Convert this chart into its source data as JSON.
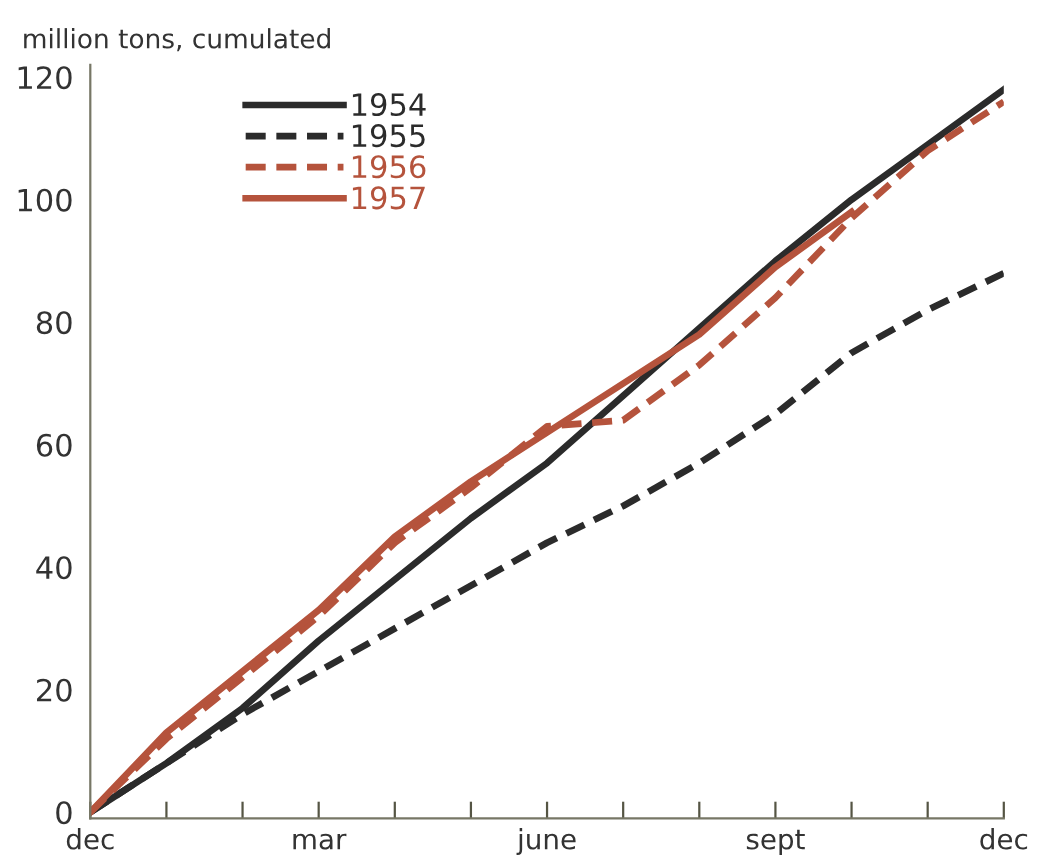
{
  "chart_data": {
    "type": "line",
    "ylabel": "million tons, cumulated",
    "categories": [
      "dec",
      null,
      null,
      "mar",
      null,
      null,
      "june",
      null,
      null,
      "sept",
      null,
      null,
      "dec"
    ],
    "ylim": [
      -1,
      122
    ],
    "yticks": [
      0,
      20,
      40,
      60,
      80,
      100,
      120
    ],
    "grid": false,
    "legend": "top left",
    "marker": "none",
    "series": [
      {
        "name": "1954",
        "color": "#2b2b2b",
        "line_style": "solid",
        "values": [
          0,
          8,
          17,
          28,
          38,
          48,
          57,
          68,
          79,
          90,
          100,
          109,
          118
        ]
      },
      {
        "name": "1955",
        "color": "#2b2b2b",
        "line_style": "dashed",
        "values": [
          0,
          8,
          16,
          23,
          30,
          37,
          44,
          50,
          57,
          65,
          75,
          82,
          88
        ]
      },
      {
        "name": "1956",
        "color": "#b5533c",
        "line_style": "dashed",
        "values": [
          0,
          12,
          22,
          32,
          44,
          53,
          63,
          64,
          73,
          84,
          97,
          108,
          116
        ]
      },
      {
        "name": "1957",
        "color": "#b5533c",
        "line_style": "solid",
        "values": [
          0,
          13,
          23,
          33,
          45,
          54,
          62,
          70,
          78,
          89,
          98,
          null,
          null
        ]
      }
    ]
  }
}
